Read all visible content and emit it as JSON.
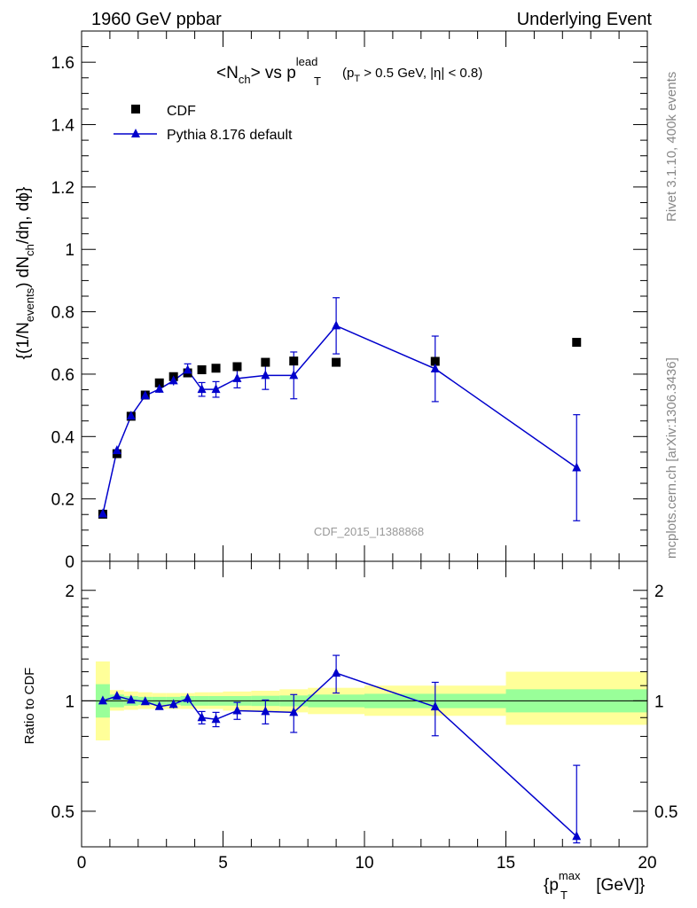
{
  "header": {
    "left": "1960 GeV ppbar",
    "right": "Underlying Event"
  },
  "title": {
    "prefix": "<N",
    "prefix_sub": "ch",
    "mid": "> vs p",
    "sup": "lead",
    "sub": "T",
    "cut_open": "(p",
    "cut_sub": "T",
    "cut_rest": " > 0.5 GeV, |η| < 0.8)"
  },
  "y_label_main": {
    "p1": "{(1/N",
    "p1_sub": "events",
    "p2": ") dN",
    "p2_sub": "ch",
    "p3": "/dη, dϕ}"
  },
  "y_label_ratio": "Ratio to CDF",
  "x_label": {
    "p1": "{p",
    "sup": "max",
    "sub": "T",
    "p2": " [GeV]}"
  },
  "side_labels": {
    "top": "Rivet 3.1.10,  400k events",
    "bottom": "mcplots.cern.ch [arXiv:1306.3436]"
  },
  "watermark": "CDF_2015_I1388868",
  "legend": [
    {
      "label": "CDF",
      "marker": "square",
      "color": "#000000"
    },
    {
      "label": "Pythia 8.176 default",
      "marker": "triangle",
      "color": "#0000cc"
    }
  ],
  "colors": {
    "mc": "#0000cc",
    "data": "#000000",
    "band_inner": "#99ff99",
    "band_outer": "#ffff99"
  },
  "chart_data": [
    {
      "type": "scatter",
      "panel": "main",
      "xlim": [
        0,
        20
      ],
      "ylim": [
        0,
        1.7
      ],
      "x_ticks": [
        0,
        5,
        10,
        15,
        20
      ],
      "y_ticks": [
        0,
        0.2,
        0.4,
        0.6,
        0.8,
        1,
        1.2,
        1.4,
        1.6
      ],
      "y_tick_labels": [
        "0",
        "0.2",
        "0.4",
        "0.6",
        "0.8",
        "1",
        "1.2",
        "1.4",
        "1.6"
      ],
      "series": [
        {
          "name": "CDF",
          "x": [
            0.75,
            1.25,
            1.75,
            2.25,
            2.75,
            3.25,
            3.75,
            4.25,
            4.75,
            5.5,
            6.5,
            7.5,
            9.0,
            12.5,
            17.5
          ],
          "xerr": [
            0.25,
            0.25,
            0.25,
            0.25,
            0.25,
            0.25,
            0.25,
            0.25,
            0.25,
            0.5,
            0.5,
            0.5,
            1.0,
            2.5,
            2.5
          ],
          "y": [
            0.151,
            0.345,
            0.465,
            0.533,
            0.572,
            0.592,
            0.604,
            0.614,
            0.619,
            0.624,
            0.638,
            0.642,
            0.638,
            0.641,
            0.702
          ],
          "yerr": [
            0.003,
            0.004,
            0.004,
            0.004,
            0.004,
            0.004,
            0.005,
            0.005,
            0.005,
            0.006,
            0.007,
            0.008,
            0.009,
            0.01,
            0.02
          ]
        },
        {
          "name": "Pythia 8.176 default",
          "x": [
            0.75,
            1.25,
            1.75,
            2.25,
            2.75,
            3.25,
            3.75,
            4.25,
            4.75,
            5.5,
            6.5,
            7.5,
            9.0,
            12.5,
            17.5
          ],
          "y": [
            0.152,
            0.355,
            0.466,
            0.531,
            0.552,
            0.579,
            0.613,
            0.551,
            0.551,
            0.586,
            0.596,
            0.596,
            0.755,
            0.617,
            0.3
          ],
          "yerr": [
            0.005,
            0.008,
            0.009,
            0.01,
            0.012,
            0.015,
            0.02,
            0.022,
            0.025,
            0.03,
            0.045,
            0.075,
            0.09,
            0.105,
            0.17
          ]
        }
      ]
    },
    {
      "type": "scatter",
      "panel": "ratio",
      "ylabel": "Ratio to CDF",
      "xlabel": "{pTmax [GeV]}",
      "xlim": [
        0,
        20
      ],
      "ylim": [
        0.4,
        2.4
      ],
      "log_y": true,
      "x_ticks": [
        0,
        5,
        10,
        15,
        20
      ],
      "x_tick_labels": [
        "0",
        "5",
        "10",
        "15",
        "20"
      ],
      "y_ticks": [
        0.5,
        1,
        2
      ],
      "y_tick_labels": [
        "0.5",
        "1",
        "2"
      ],
      "bands": {
        "x_edges": [
          0.5,
          1.0,
          1.5,
          2.0,
          2.5,
          3.0,
          3.5,
          4.0,
          4.5,
          5.0,
          6.0,
          7.0,
          8.0,
          10.0,
          15.0,
          20.0
        ],
        "inner_lo": [
          0.9,
          0.96,
          0.97,
          0.975,
          0.975,
          0.975,
          0.97,
          0.97,
          0.97,
          0.97,
          0.968,
          0.966,
          0.96,
          0.955,
          0.93
        ],
        "inner_hi": [
          1.11,
          1.04,
          1.03,
          1.025,
          1.025,
          1.025,
          1.03,
          1.03,
          1.03,
          1.03,
          1.032,
          1.034,
          1.04,
          1.045,
          1.075
        ],
        "outer_lo": [
          0.78,
          0.94,
          0.945,
          0.95,
          0.95,
          0.95,
          0.95,
          0.95,
          0.95,
          0.94,
          0.935,
          0.93,
          0.92,
          0.91,
          0.86
        ],
        "outer_hi": [
          1.28,
          1.07,
          1.06,
          1.055,
          1.05,
          1.05,
          1.05,
          1.055,
          1.055,
          1.06,
          1.065,
          1.075,
          1.085,
          1.1,
          1.2
        ]
      },
      "series": [
        {
          "name": "Pythia 8.176 default",
          "x": [
            0.75,
            1.25,
            1.75,
            2.25,
            2.75,
            3.25,
            3.75,
            4.25,
            4.75,
            5.5,
            6.5,
            7.5,
            9.0,
            12.5,
            17.5
          ],
          "y": [
            1.0,
            1.03,
            1.005,
            0.995,
            0.965,
            0.978,
            1.015,
            0.9,
            0.89,
            0.94,
            0.935,
            0.93,
            1.19,
            0.963,
            0.427
          ],
          "yerr": [
            0.01,
            0.015,
            0.015,
            0.015,
            0.02,
            0.025,
            0.03,
            0.035,
            0.04,
            0.05,
            0.07,
            0.11,
            0.14,
            0.16,
            0.24
          ]
        }
      ]
    }
  ]
}
